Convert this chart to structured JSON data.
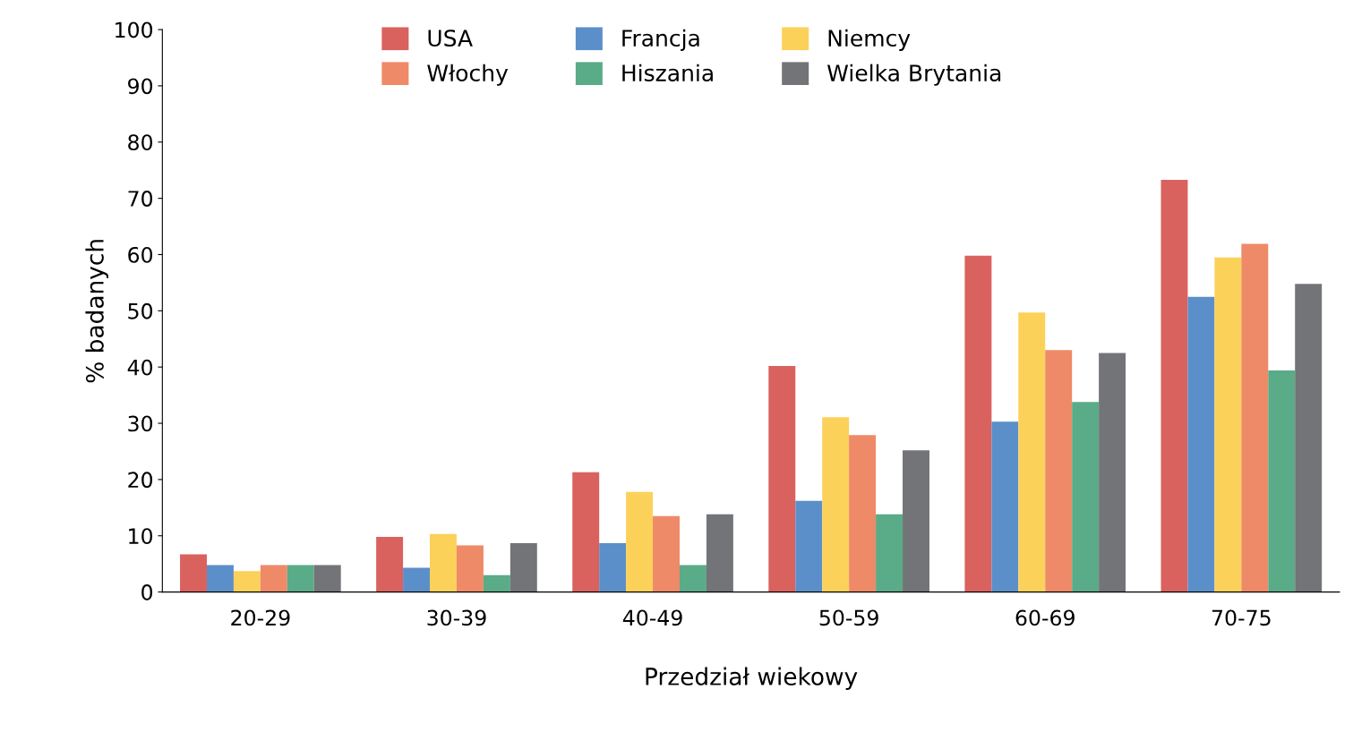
{
  "chart_data": {
    "type": "bar",
    "xlabel": "Przedział wiekowy",
    "ylabel": "% badanych",
    "categories": [
      "20-29",
      "30-39",
      "40-49",
      "50-59",
      "60-69",
      "70-75"
    ],
    "series": [
      {
        "name": "USA",
        "color": "#d9625e",
        "values": [
          6.7,
          9.8,
          21.3,
          40.2,
          59.8,
          73.3
        ]
      },
      {
        "name": "Francja",
        "color": "#5b8fc9",
        "values": [
          4.8,
          4.3,
          8.7,
          16.2,
          30.3,
          52.5
        ]
      },
      {
        "name": "Niemcy",
        "color": "#fcd15a",
        "values": [
          3.7,
          10.3,
          17.8,
          31.1,
          49.7,
          59.5
        ]
      },
      {
        "name": "Włochy",
        "color": "#ee8a67",
        "values": [
          4.8,
          8.3,
          13.5,
          27.9,
          43.0,
          61.9
        ]
      },
      {
        "name": "Hiszania",
        "color": "#5aab87",
        "values": [
          4.8,
          3.0,
          4.8,
          13.8,
          33.8,
          39.4
        ]
      },
      {
        "name": "Wielka Brytania",
        "color": "#737477",
        "values": [
          4.8,
          8.7,
          13.8,
          25.2,
          42.5,
          54.8
        ]
      }
    ],
    "ylim": [
      0,
      100
    ],
    "yticks": [
      0,
      10,
      20,
      30,
      40,
      50,
      60,
      70,
      80,
      90,
      100
    ],
    "grid": false,
    "legend": "top"
  }
}
